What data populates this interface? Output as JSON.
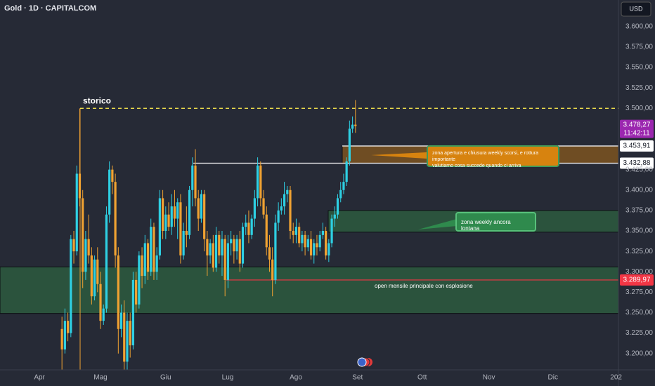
{
  "header": {
    "title": "Gold · 1D · CAPITALCOM",
    "currency": "USD"
  },
  "chart_data": {
    "type": "candlestick",
    "up_color": "#2ed0e3",
    "down_color": "#f0a232",
    "xlim": [
      -20.9,
      187.7
    ],
    "xticks": [
      {
        "value": -7.6,
        "label": "Apr"
      },
      {
        "value": 13,
        "label": "Mag"
      },
      {
        "value": 35,
        "label": "Giu"
      },
      {
        "value": 55.9,
        "label": "Lug"
      },
      {
        "value": 78.9,
        "label": "Ago"
      },
      {
        "value": 99.7,
        "label": "Set"
      },
      {
        "value": 121.5,
        "label": "Ott"
      },
      {
        "value": 144,
        "label": "Nov"
      },
      {
        "value": 165.6,
        "label": "Dic"
      },
      {
        "value": 186.9,
        "label": "202"
      }
    ],
    "ylim": [
      3180,
      3632.5
    ],
    "yticks": [
      {
        "value": 3200,
        "label": "3.200,00"
      },
      {
        "value": 3225,
        "label": "3.225,00"
      },
      {
        "value": 3250,
        "label": "3.250,00"
      },
      {
        "value": 3275,
        "label": "3.275,00"
      },
      {
        "value": 3300,
        "label": "3.300,00"
      },
      {
        "value": 3325,
        "label": "3.325,00"
      },
      {
        "value": 3350,
        "label": "3.350,00"
      },
      {
        "value": 3375,
        "label": "3.375,00"
      },
      {
        "value": 3400,
        "label": "3.400,00"
      },
      {
        "value": 3425,
        "label": "3.425,00"
      },
      {
        "value": 3500,
        "label": "3.500,00"
      },
      {
        "value": 3525,
        "label": "3.525,00"
      },
      {
        "value": 3550,
        "label": "3.550,00"
      },
      {
        "value": 3575,
        "label": "3.575,00"
      },
      {
        "value": 3600,
        "label": "3.600,00"
      }
    ],
    "values": [
      [
        3230,
        3245,
        3180,
        3205
      ],
      [
        3205,
        3255,
        3200,
        3240
      ],
      [
        3240,
        3250,
        3215,
        3225
      ],
      [
        3225,
        3345,
        3220,
        3340
      ],
      [
        3340,
        3350,
        3310,
        3325
      ],
      [
        3325,
        3430,
        3320,
        3420
      ],
      [
        3420,
        3500,
        3380,
        3390
      ],
      [
        3390,
        3400,
        3280,
        3300
      ],
      [
        3300,
        3350,
        3290,
        3340
      ],
      [
        3340,
        3370,
        3310,
        3320
      ],
      [
        3320,
        3330,
        3260,
        3270
      ],
      [
        3270,
        3320,
        3265,
        3315
      ],
      [
        3315,
        3330,
        3275,
        3285
      ],
      [
        3285,
        3300,
        3230,
        3240
      ],
      [
        3240,
        3260,
        3235,
        3255
      ],
      [
        3255,
        3380,
        3250,
        3370
      ],
      [
        3370,
        3435,
        3360,
        3425
      ],
      [
        3425,
        3430,
        3395,
        3410
      ],
      [
        3410,
        3420,
        3305,
        3320
      ],
      [
        3320,
        3330,
        3200,
        3230
      ],
      [
        3230,
        3260,
        3220,
        3250
      ],
      [
        3250,
        3265,
        3170,
        3190
      ],
      [
        3190,
        3250,
        3180,
        3240
      ],
      [
        3240,
        3250,
        3195,
        3210
      ],
      [
        3210,
        3300,
        3205,
        3290
      ],
      [
        3290,
        3300,
        3250,
        3260
      ],
      [
        3260,
        3325,
        3255,
        3320
      ],
      [
        3320,
        3330,
        3280,
        3295
      ],
      [
        3295,
        3345,
        3285,
        3335
      ],
      [
        3335,
        3340,
        3290,
        3300
      ],
      [
        3300,
        3365,
        3295,
        3355
      ],
      [
        3355,
        3360,
        3290,
        3300
      ],
      [
        3300,
        3330,
        3290,
        3320
      ],
      [
        3320,
        3400,
        3315,
        3390
      ],
      [
        3390,
        3400,
        3340,
        3350
      ],
      [
        3350,
        3380,
        3340,
        3370
      ],
      [
        3370,
        3385,
        3350,
        3355
      ],
      [
        3355,
        3395,
        3345,
        3380
      ],
      [
        3380,
        3400,
        3355,
        3365
      ],
      [
        3365,
        3390,
        3340,
        3385
      ],
      [
        3385,
        3395,
        3310,
        3320
      ],
      [
        3320,
        3360,
        3315,
        3350
      ],
      [
        3350,
        3380,
        3330,
        3345
      ],
      [
        3345,
        3405,
        3340,
        3400
      ],
      [
        3400,
        3440,
        3380,
        3430
      ],
      [
        3430,
        3450,
        3380,
        3390
      ],
      [
        3390,
        3400,
        3350,
        3365
      ],
      [
        3365,
        3400,
        3360,
        3395
      ],
      [
        3395,
        3400,
        3325,
        3340
      ],
      [
        3340,
        3350,
        3295,
        3320
      ],
      [
        3320,
        3340,
        3310,
        3335
      ],
      [
        3335,
        3345,
        3300,
        3305
      ],
      [
        3305,
        3355,
        3300,
        3345
      ],
      [
        3345,
        3350,
        3310,
        3320
      ],
      [
        3320,
        3350,
        3295,
        3340
      ],
      [
        3340,
        3345,
        3270,
        3290
      ],
      [
        3290,
        3345,
        3280,
        3335
      ],
      [
        3335,
        3350,
        3320,
        3340
      ],
      [
        3340,
        3345,
        3310,
        3325
      ],
      [
        3325,
        3345,
        3315,
        3340
      ],
      [
        3340,
        3350,
        3300,
        3310
      ],
      [
        3310,
        3360,
        3305,
        3355
      ],
      [
        3355,
        3370,
        3345,
        3360
      ],
      [
        3360,
        3375,
        3335,
        3345
      ],
      [
        3345,
        3370,
        3340,
        3365
      ],
      [
        3365,
        3400,
        3355,
        3390
      ],
      [
        3390,
        3440,
        3380,
        3430
      ],
      [
        3430,
        3435,
        3380,
        3390
      ],
      [
        3390,
        3400,
        3365,
        3370
      ],
      [
        3370,
        3380,
        3320,
        3330
      ],
      [
        3330,
        3345,
        3300,
        3315
      ],
      [
        3315,
        3330,
        3270,
        3290
      ],
      [
        3290,
        3370,
        3285,
        3360
      ],
      [
        3360,
        3385,
        3350,
        3375
      ],
      [
        3375,
        3390,
        3370,
        3380
      ],
      [
        3380,
        3410,
        3370,
        3395
      ],
      [
        3395,
        3405,
        3385,
        3400
      ],
      [
        3400,
        3405,
        3340,
        3350
      ],
      [
        3350,
        3360,
        3335,
        3345
      ],
      [
        3345,
        3365,
        3335,
        3355
      ],
      [
        3355,
        3360,
        3330,
        3335
      ],
      [
        3335,
        3350,
        3325,
        3345
      ],
      [
        3345,
        3350,
        3320,
        3330
      ],
      [
        3330,
        3345,
        3325,
        3340
      ],
      [
        3340,
        3350,
        3315,
        3320
      ],
      [
        3320,
        3340,
        3310,
        3335
      ],
      [
        3335,
        3345,
        3320,
        3330
      ],
      [
        3330,
        3350,
        3325,
        3345
      ],
      [
        3345,
        3360,
        3340,
        3350
      ],
      [
        3350,
        3355,
        3315,
        3320
      ],
      [
        3320,
        3340,
        3312,
        3335
      ],
      [
        3335,
        3370,
        3330,
        3365
      ],
      [
        3365,
        3380,
        3355,
        3370
      ],
      [
        3370,
        3395,
        3365,
        3390
      ],
      [
        3390,
        3410,
        3385,
        3400
      ],
      [
        3400,
        3420,
        3395,
        3410
      ],
      [
        3410,
        3440,
        3405,
        3435
      ],
      [
        3435,
        3485,
        3430,
        3475
      ],
      [
        3475,
        3490,
        3470,
        3480
      ],
      [
        3480,
        3510,
        3470,
        3478.27
      ]
    ],
    "last_price": {
      "value": 3478.27,
      "label": "3.478,27",
      "timer": "11:42:11",
      "color": "#9b27af"
    },
    "levels": [
      {
        "value": 3500,
        "label": "storico",
        "color": "#f2e14c",
        "dashed": true
      },
      {
        "value": 3453.91,
        "label": "3.453,91",
        "color": "#ffffff"
      },
      {
        "value": 3432.88,
        "label": "3.432,88",
        "color": "#ffffff"
      },
      {
        "value": 3289.97,
        "label": "3.289,97",
        "color": "#f23645"
      }
    ],
    "zones": [
      {
        "top": 3453.91,
        "bottom": 3432.88,
        "color": "#7d5320"
      },
      {
        "top": 3375,
        "bottom": 3348.5,
        "color": "#2d5a3e"
      },
      {
        "top": 3306,
        "bottom": 3249,
        "color": "#2d5a3e"
      }
    ],
    "annotations": [
      {
        "lines": [
          "zona apertura e chiusura weekly scorsi, e rottura importante",
          "valutiamo cosa succede quando ci arriva"
        ]
      },
      {
        "lines": [
          "zona weekly ancora lontana"
        ]
      },
      {
        "lines": [
          "open mensile principale con esplosione"
        ]
      }
    ]
  }
}
